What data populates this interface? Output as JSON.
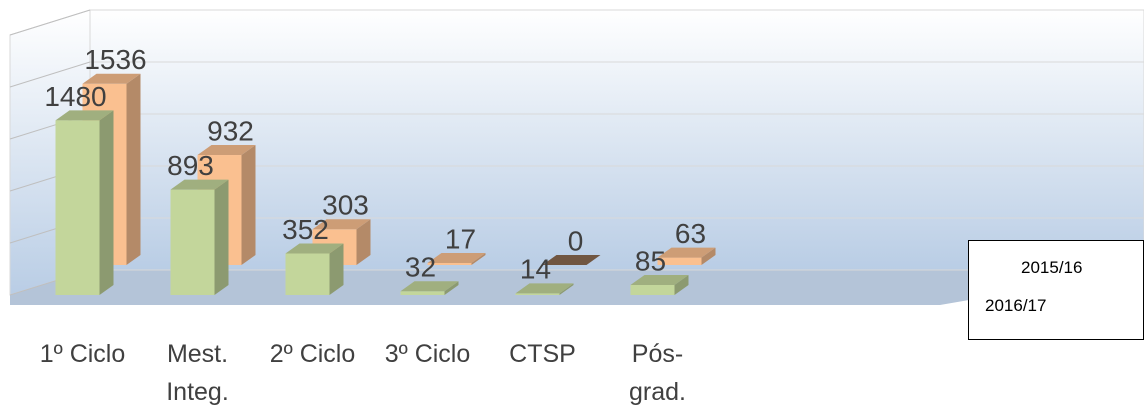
{
  "chart_data": {
    "type": "bar",
    "categories": [
      "1º Ciclo",
      "Mest. Integ.",
      "2º Ciclo",
      "3º Ciclo",
      "CTSP",
      "Pós-grad."
    ],
    "series": [
      {
        "name": "2015/16",
        "color": "#c3d69b",
        "values": [
          1480,
          893,
          352,
          32,
          14,
          85
        ]
      },
      {
        "name": "2016/17",
        "color": "#fac090",
        "values": [
          1536,
          932,
          303,
          17,
          0,
          63
        ]
      }
    ],
    "ylim": [
      0,
      2500
    ],
    "yticks": [
      0,
      500,
      1000,
      1500,
      2000,
      2500
    ],
    "grid": true
  }
}
